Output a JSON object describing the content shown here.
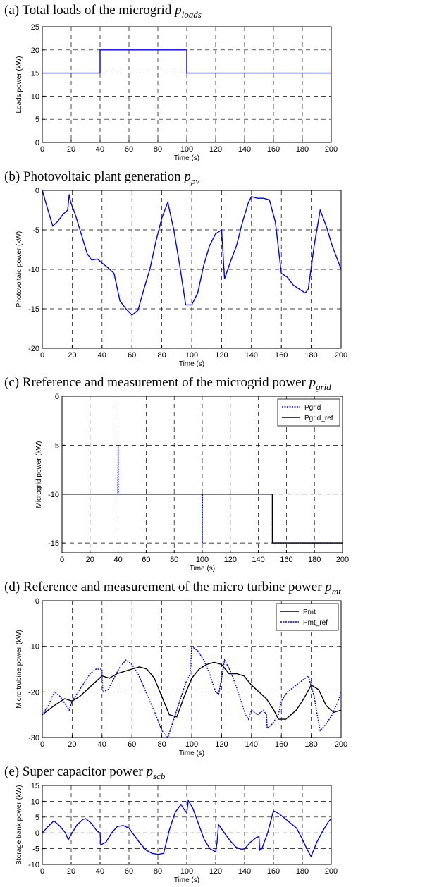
{
  "panels": [
    {
      "title": "(a) Total loads of the microgrid ",
      "sym": "p",
      "sub": "loads"
    },
    {
      "title": "(b) Photovoltaic plant generation ",
      "sym": "p",
      "sub": "pv"
    },
    {
      "title": "(c) Rreference and measurement of the microgrid power ",
      "sym": "p",
      "sub": "grid"
    },
    {
      "title": "(d) Reference and measurement of the micro turbine power ",
      "sym": "p",
      "sub": "mt"
    },
    {
      "title": "(e) Super capacitor power ",
      "sym": "p",
      "sub": "scb"
    }
  ],
  "chart_data": [
    {
      "type": "line",
      "title": "(a) Total loads of the microgrid p_loads",
      "xlabel": "Time (s)",
      "ylabel": "Loads power (kW)",
      "xlim": [
        0,
        200
      ],
      "ylim": [
        0,
        25
      ],
      "xticks": [
        0,
        20,
        40,
        60,
        80,
        100,
        120,
        140,
        160,
        180,
        200
      ],
      "yticks": [
        0,
        5,
        10,
        15,
        20,
        25
      ],
      "grid": true,
      "series": [
        {
          "color": "#0000ee",
          "dash": false,
          "x": [
            0,
            40,
            40,
            100,
            100,
            200
          ],
          "y": [
            15,
            15,
            20,
            20,
            15,
            15
          ]
        }
      ]
    },
    {
      "type": "line",
      "title": "(b) Photovoltaic plant generation p_pv",
      "xlabel": "Time (s)",
      "ylabel": "Photovoltaic power (kW)",
      "xlim": [
        0,
        200
      ],
      "ylim": [
        -20,
        0
      ],
      "xticks": [
        0,
        20,
        40,
        60,
        80,
        100,
        120,
        140,
        160,
        180,
        200
      ],
      "yticks": [
        -20,
        -15,
        -10,
        -5,
        0
      ],
      "grid": true,
      "series": [
        {
          "color": "#0000ee",
          "dash": false,
          "x": [
            0,
            3,
            7,
            10,
            14,
            17,
            18,
            19,
            22,
            26,
            30,
            33,
            37,
            40,
            44,
            48,
            52,
            56,
            60,
            64,
            68,
            72,
            76,
            80,
            84,
            88,
            92,
            96,
            100,
            104,
            108,
            112,
            116,
            120,
            122,
            126,
            130,
            134,
            138,
            140,
            144,
            148,
            152,
            156,
            160,
            164,
            168,
            172,
            176,
            178,
            182,
            186,
            190,
            194,
            198,
            200
          ],
          "y": [
            0,
            -2,
            -4.5,
            -4,
            -3,
            -2.5,
            -0.5,
            -1.5,
            -3,
            -5.5,
            -8,
            -8.8,
            -8.7,
            -9.2,
            -9.8,
            -10.5,
            -14,
            -15,
            -15.8,
            -15.2,
            -12.5,
            -10,
            -6.5,
            -3.5,
            -1.5,
            -5,
            -9.5,
            -14.5,
            -14.5,
            -13,
            -9.5,
            -7,
            -5.5,
            -5,
            -11.2,
            -9,
            -7,
            -4,
            -1.5,
            -0.8,
            -1,
            -1,
            -1.2,
            -4,
            -10.5,
            -11,
            -12,
            -12.5,
            -13,
            -12.5,
            -7,
            -2.5,
            -4.5,
            -7,
            -9,
            -10
          ]
        }
      ]
    },
    {
      "type": "line",
      "title": "(c) Rreference and measurement of the microgrid power p_grid",
      "xlabel": "Time (s)",
      "ylabel": "Microgrid power (kW)",
      "xlim": [
        0,
        200
      ],
      "ylim": [
        -16,
        0
      ],
      "xticks": [
        0,
        20,
        40,
        60,
        80,
        100,
        120,
        140,
        160,
        180,
        200
      ],
      "yticks": [
        -15,
        -10,
        -5,
        0
      ],
      "grid": true,
      "legend": {
        "placement": "top-right"
      },
      "series": [
        {
          "name": "Pgrid",
          "color": "#0000ee",
          "dash": true,
          "x": [
            0,
            39.8,
            40,
            40.2,
            99.8,
            100,
            100.2,
            150,
            150,
            200
          ],
          "y": [
            -10,
            -10,
            -5,
            -10,
            -10,
            -15,
            -10,
            -10,
            -15,
            -15
          ]
        },
        {
          "name": "Pgrid_ref",
          "color": "#000000",
          "dash": false,
          "x": [
            0,
            150,
            150,
            200
          ],
          "y": [
            -10,
            -10,
            -15,
            -15
          ]
        }
      ]
    },
    {
      "type": "line",
      "title": "(d) Reference and measurement of the micro turbine power p_mt",
      "xlabel": "Time (s)",
      "ylabel": "Micro trubine power (kW)",
      "xlim": [
        0,
        200
      ],
      "ylim": [
        -30,
        0
      ],
      "xticks": [
        0,
        20,
        40,
        60,
        80,
        100,
        120,
        140,
        160,
        180,
        200
      ],
      "yticks": [
        -30,
        -20,
        -10,
        0
      ],
      "grid": true,
      "legend": {
        "placement": "top-right"
      },
      "series": [
        {
          "name": "Pmt",
          "color": "#000000",
          "dash": false,
          "x": [
            0,
            8,
            15,
            20,
            25,
            30,
            35,
            40,
            45,
            50,
            55,
            60,
            65,
            70,
            75,
            80,
            85,
            90,
            95,
            100,
            105,
            110,
            115,
            120,
            125,
            130,
            135,
            140,
            145,
            150,
            155,
            158,
            163,
            170,
            175,
            180,
            185,
            190,
            195,
            200
          ],
          "y": [
            -25,
            -23,
            -21.5,
            -22,
            -21,
            -19.5,
            -18,
            -16.5,
            -17,
            -16,
            -15.5,
            -15,
            -14.5,
            -15,
            -17,
            -21,
            -25,
            -25.5,
            -21,
            -17,
            -15,
            -14,
            -13.5,
            -14,
            -16,
            -16,
            -16.5,
            -18.5,
            -20,
            -21.5,
            -24,
            -26,
            -26,
            -24,
            -21.5,
            -18.5,
            -19.5,
            -23,
            -24.5,
            -24
          ]
        },
        {
          "name": "Pmt_ref",
          "color": "#0000ee",
          "dash": true,
          "x": [
            0,
            4,
            8,
            12,
            16,
            18,
            20,
            24,
            28,
            32,
            36,
            40,
            40.5,
            44,
            48,
            52,
            56,
            60,
            64,
            68,
            72,
            76,
            80,
            84,
            88,
            92,
            96,
            99,
            100,
            104,
            108,
            112,
            116,
            118,
            120,
            122,
            126,
            130,
            134,
            136,
            138,
            140,
            144,
            148,
            150,
            150.5,
            154,
            158,
            160,
            164,
            168,
            172,
            176,
            178,
            182,
            184,
            186,
            190,
            194,
            198,
            200
          ],
          "y": [
            -25,
            -23,
            -20,
            -21,
            -23,
            -24,
            -22,
            -20,
            -18,
            -16,
            -15,
            -15,
            -20,
            -19.5,
            -17,
            -14.5,
            -13,
            -14,
            -16,
            -19,
            -22,
            -25,
            -28.5,
            -30,
            -26,
            -22,
            -18,
            -16,
            -10,
            -11,
            -13,
            -16,
            -20,
            -20.5,
            -17,
            -13,
            -15.5,
            -19,
            -23,
            -25,
            -26,
            -24,
            -25,
            -24,
            -25,
            -28,
            -27,
            -25,
            -22,
            -20,
            -19,
            -18,
            -17,
            -16.5,
            -21,
            -25,
            -28.5,
            -27,
            -25,
            -22,
            -20
          ]
        }
      ]
    },
    {
      "type": "line",
      "title": "(e) Super capacitor power p_scb",
      "xlabel": "Time (s)",
      "ylabel": "Storage bank power (kW)",
      "xlim": [
        0,
        200
      ],
      "ylim": [
        -10,
        15
      ],
      "xticks": [
        0,
        20,
        40,
        60,
        80,
        100,
        120,
        140,
        160,
        180,
        200
      ],
      "yticks": [
        -10,
        -5,
        0,
        5,
        10,
        15
      ],
      "grid": true,
      "series": [
        {
          "color": "#0000ee",
          "dash": false,
          "x": [
            0,
            4,
            8,
            12,
            16,
            18,
            20,
            24,
            28,
            30,
            34,
            38,
            40,
            40.5,
            44,
            48,
            52,
            56,
            60,
            64,
            68,
            72,
            76,
            80,
            84,
            88,
            92,
            96,
            98,
            100,
            101,
            104,
            108,
            112,
            116,
            120,
            121,
            122,
            126,
            130,
            134,
            138,
            140,
            144,
            148,
            150,
            150.5,
            152,
            156,
            160,
            164,
            168,
            172,
            176,
            180,
            183,
            186,
            190,
            194,
            198,
            200
          ],
          "y": [
            0,
            2,
            3.8,
            2.2,
            0,
            -2.2,
            -0.5,
            2.5,
            4.2,
            4.5,
            3,
            0.5,
            0,
            -3.8,
            -3,
            0,
            2,
            2.3,
            1.5,
            -1,
            -3.5,
            -5.5,
            -6.5,
            -6.8,
            -6.5,
            1,
            6.5,
            9,
            7.5,
            6.3,
            10.2,
            8,
            3,
            -2,
            -5,
            -6,
            -3,
            2.6,
            0,
            -2.5,
            -4.5,
            -5.2,
            -5,
            -3,
            -1.5,
            -1.2,
            -5.5,
            -5,
            0,
            7,
            6,
            4.5,
            3,
            1.5,
            -2,
            -5,
            -7.5,
            -3,
            0.5,
            3.5,
            4.5
          ]
        }
      ]
    }
  ]
}
